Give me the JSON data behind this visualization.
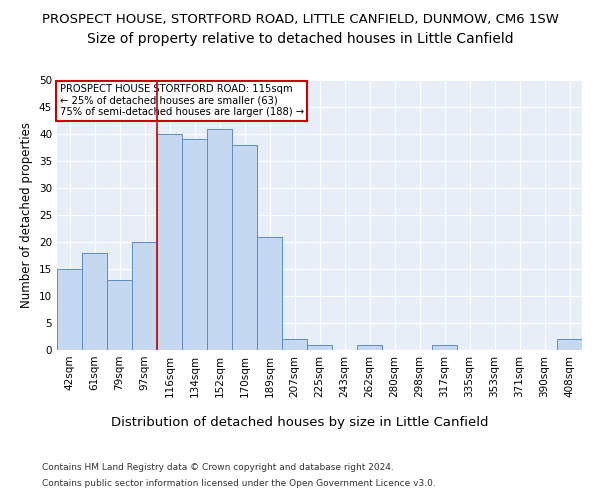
{
  "title_line1": "PROSPECT HOUSE, STORTFORD ROAD, LITTLE CANFIELD, DUNMOW, CM6 1SW",
  "title_line2": "Size of property relative to detached houses in Little Canfield",
  "xlabel": "Distribution of detached houses by size in Little Canfield",
  "ylabel": "Number of detached properties",
  "categories": [
    "42sqm",
    "61sqm",
    "79sqm",
    "97sqm",
    "116sqm",
    "134sqm",
    "152sqm",
    "170sqm",
    "189sqm",
    "207sqm",
    "225sqm",
    "243sqm",
    "262sqm",
    "280sqm",
    "298sqm",
    "317sqm",
    "335sqm",
    "353sqm",
    "371sqm",
    "390sqm",
    "408sqm"
  ],
  "values": [
    15,
    18,
    13,
    20,
    40,
    39,
    41,
    38,
    21,
    2,
    1,
    0,
    1,
    0,
    0,
    1,
    0,
    0,
    0,
    0,
    2
  ],
  "bar_color": "#c5d8f0",
  "bar_edge_color": "#5b8ec7",
  "ref_line_color": "#cc0000",
  "ylim": [
    0,
    50
  ],
  "yticks": [
    0,
    5,
    10,
    15,
    20,
    25,
    30,
    35,
    40,
    45,
    50
  ],
  "annotation_box_text": "PROSPECT HOUSE STORTFORD ROAD: 115sqm\n← 25% of detached houses are smaller (63)\n75% of semi-detached houses are larger (188) →",
  "annotation_box_color": "#cc0000",
  "background_color": "#e8eef8",
  "grid_color": "#ffffff",
  "footer_line1": "Contains HM Land Registry data © Crown copyright and database right 2024.",
  "footer_line2": "Contains public sector information licensed under the Open Government Licence v3.0.",
  "title_fontsize": 9.5,
  "subtitle_fontsize": 10,
  "tick_fontsize": 7.5,
  "ylabel_fontsize": 8.5,
  "xlabel_fontsize": 9.5,
  "footer_fontsize": 6.5
}
